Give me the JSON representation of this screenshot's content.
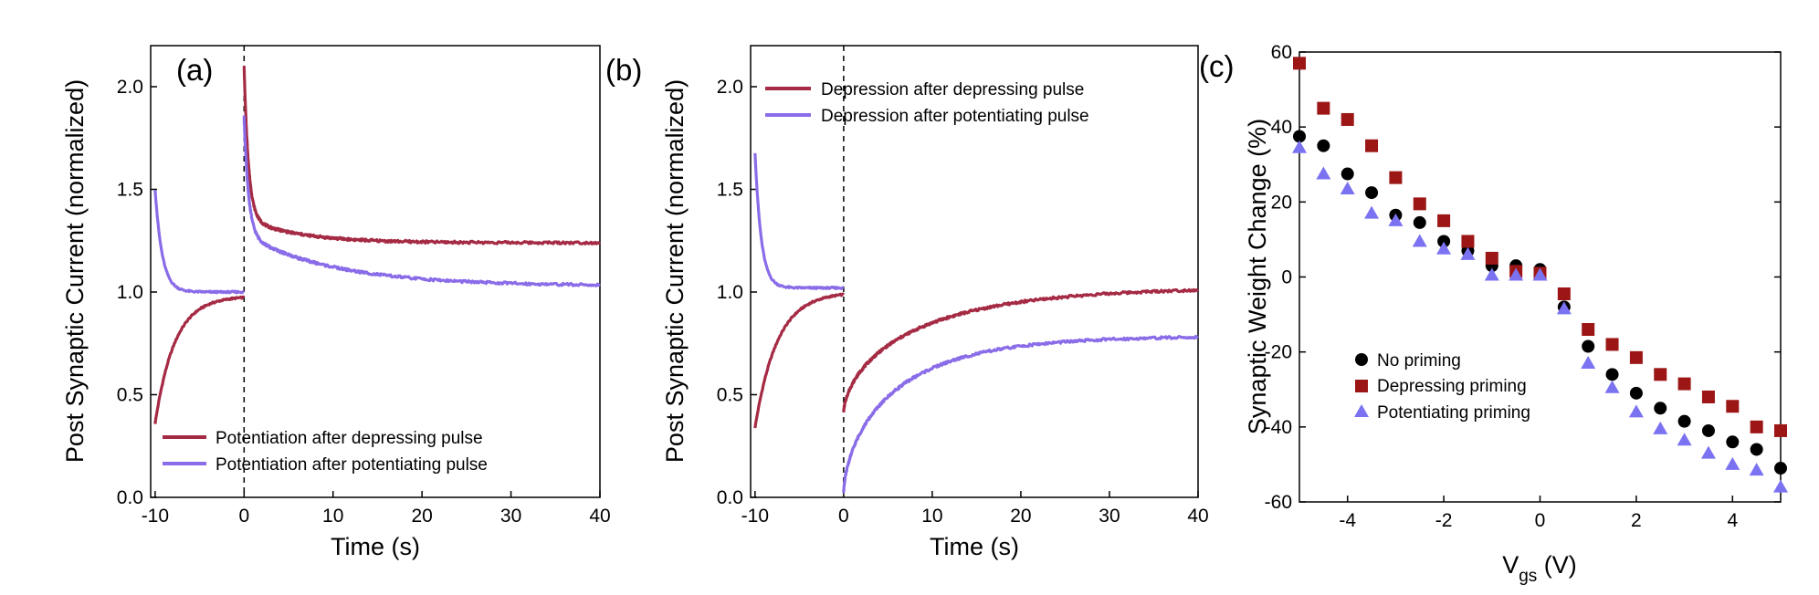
{
  "chart_data": [
    {
      "type": "line",
      "panel_label": "(a)",
      "xlabel": "Time (s)",
      "ylabel": "Post Synaptic Current (normalized)",
      "xlim": [
        -10.5,
        40
      ],
      "ylim": [
        0,
        2.2
      ],
      "xticks": [
        -10,
        0,
        10,
        20,
        30,
        40
      ],
      "yticks": [
        0.0,
        0.5,
        1.0,
        1.5,
        2.0
      ],
      "xtick_labels": [
        "-10",
        "0",
        "10",
        "20",
        "30",
        "40"
      ],
      "ytick_labels": [
        "0.0",
        "0.5",
        "1.0",
        "1.5",
        "2.0"
      ],
      "vline_x": 0,
      "legend_position": "bottom-left",
      "series": [
        {
          "name": "Potentiation after depressing pulse",
          "color": "#a52a44",
          "pre": {
            "start": 0.36,
            "end": 0.98,
            "tau": 2.2
          },
          "post": {
            "peak": 2.1,
            "plateau": 1.24,
            "slow_amp": 0.12,
            "fast_tau": 0.5,
            "slow_tau": 6
          }
        },
        {
          "name": "Potentiation after potentiating pulse",
          "color": "#8a6ce8",
          "pre": {
            "start": 1.5,
            "end": 1.0,
            "tau": 0.8
          },
          "post": {
            "peak": 1.85,
            "plateau": 1.03,
            "slow_amp": 0.25,
            "fast_tau": 0.5,
            "slow_tau": 10
          }
        }
      ]
    },
    {
      "type": "line",
      "panel_label": "(b)",
      "xlabel": "Time (s)",
      "ylabel": "Post Synaptic Current (normalized)",
      "xlim": [
        -10.5,
        40
      ],
      "ylim": [
        0,
        2.2
      ],
      "xticks": [
        -10,
        0,
        10,
        20,
        30,
        40
      ],
      "yticks": [
        0.0,
        0.5,
        1.0,
        1.5,
        2.0
      ],
      "xtick_labels": [
        "-10",
        "0",
        "10",
        "20",
        "30",
        "40"
      ],
      "ytick_labels": [
        "0.0",
        "0.5",
        "1.0",
        "1.5",
        "2.0"
      ],
      "vline_x": 0,
      "legend_position": "top-right",
      "series": [
        {
          "name": "Depression after depressing pulse",
          "color": "#a52a44",
          "pre": {
            "start": 0.34,
            "end": 1.0,
            "tau": 2.5
          },
          "post": {
            "low": 0.4,
            "end": 1.01,
            "k": 0.08
          }
        },
        {
          "name": "Depression after potentiating pulse",
          "color": "#8a6ce8",
          "pre": {
            "start": 1.68,
            "end": 1.02,
            "tau": 0.7
          },
          "post": {
            "low": 0.0,
            "end": 0.78,
            "k": 0.11
          }
        }
      ]
    },
    {
      "type": "scatter",
      "panel_label": "(c)",
      "xlabel": "V",
      "xlabel_sub": "gs",
      "xlabel_unit": " (V)",
      "ylabel": "Synaptic Weight Change (%)",
      "xlim": [
        -5,
        5
      ],
      "ylim": [
        -60,
        60
      ],
      "xticks": [
        -4,
        -2,
        0,
        2,
        4
      ],
      "yticks": [
        60,
        40,
        20,
        0,
        -20,
        -40,
        -60
      ],
      "xtick_labels": [
        "-4",
        "-2",
        "0",
        "2",
        "4"
      ],
      "ytick_labels": [
        "60",
        "40",
        "20",
        "0",
        "-20",
        "-40",
        "-60"
      ],
      "legend_position": "lower-left",
      "x": [
        -5,
        -4.5,
        -4,
        -3.5,
        -3,
        -2.5,
        -2,
        -1.5,
        -1,
        -0.5,
        0,
        0.5,
        1,
        1.5,
        2,
        2.5,
        3,
        3.5,
        4,
        4.5,
        5
      ],
      "series": [
        {
          "name": "No priming",
          "marker": "circle",
          "color": "#000000",
          "values": [
            37.5,
            35,
            27.5,
            22.5,
            16.5,
            14.5,
            9.5,
            7,
            3,
            3,
            2,
            -8,
            -18.5,
            -26,
            -31,
            -35,
            -38.5,
            -41,
            -44,
            -46,
            -51
          ]
        },
        {
          "name": "Depressing priming",
          "marker": "square",
          "color": "#9c1616",
          "values": [
            57,
            45,
            42,
            35,
            26.5,
            19.5,
            15,
            9.5,
            5,
            1.5,
            1,
            -4.5,
            -14,
            -18,
            -21.5,
            -26,
            -28.5,
            -32,
            -34.5,
            -40,
            -41
          ]
        },
        {
          "name": "Potentiating priming",
          "marker": "triangle",
          "color": "#7b72f2",
          "values": [
            34.5,
            27.5,
            23.5,
            17,
            15,
            9.5,
            7.5,
            6,
            0.5,
            0.5,
            0.5,
            -8.5,
            -23,
            -29.5,
            -36,
            -40.5,
            -43.5,
            -47,
            -50,
            -51.5,
            -56
          ]
        }
      ]
    }
  ]
}
